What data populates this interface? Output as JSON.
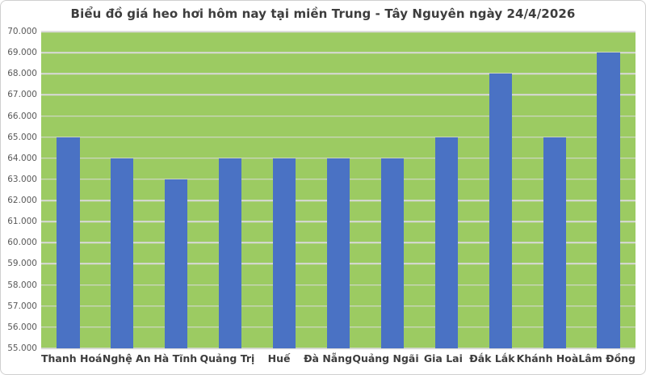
{
  "chart_data": {
    "type": "bar",
    "title": "Biểu đồ giá heo hơi hôm nay tại miền Trung - Tây Nguyên ngày 24/4/2026",
    "categories": [
      "Thanh Hoá",
      "Nghệ An",
      "Hà Tĩnh",
      "Quảng Trị",
      "Huế",
      "Đà Nẵng",
      "Quảng Ngãi",
      "Gia Lai",
      "Đắk Lắk",
      "Khánh Hoà",
      "Lâm Đồng"
    ],
    "values": [
      65000,
      64000,
      63000,
      64000,
      64000,
      64000,
      64000,
      65000,
      68000,
      65000,
      69000
    ],
    "xlabel": "",
    "ylabel": "",
    "ylim": [
      55000,
      70000
    ],
    "ytick_step": 1000,
    "ytick_labels": [
      "70.000",
      "69.000",
      "68.000",
      "67.000",
      "66.000",
      "65.000",
      "64.000",
      "63.000",
      "62.000",
      "61.000",
      "60.000",
      "59.000",
      "58.000",
      "57.000",
      "56.000",
      "55.000"
    ],
    "grid": "horizontal",
    "legend": "none",
    "colors": {
      "bar": "#4A72C4",
      "plot_background": "#9CCB62",
      "gridline": "#D9D9D9",
      "title_text": "#3D3D3D",
      "ytick_text": "#595959",
      "xtick_text": "#3D3D3D",
      "page_background": "#FFFFFF",
      "frame_border": "#CFCFCF"
    }
  }
}
